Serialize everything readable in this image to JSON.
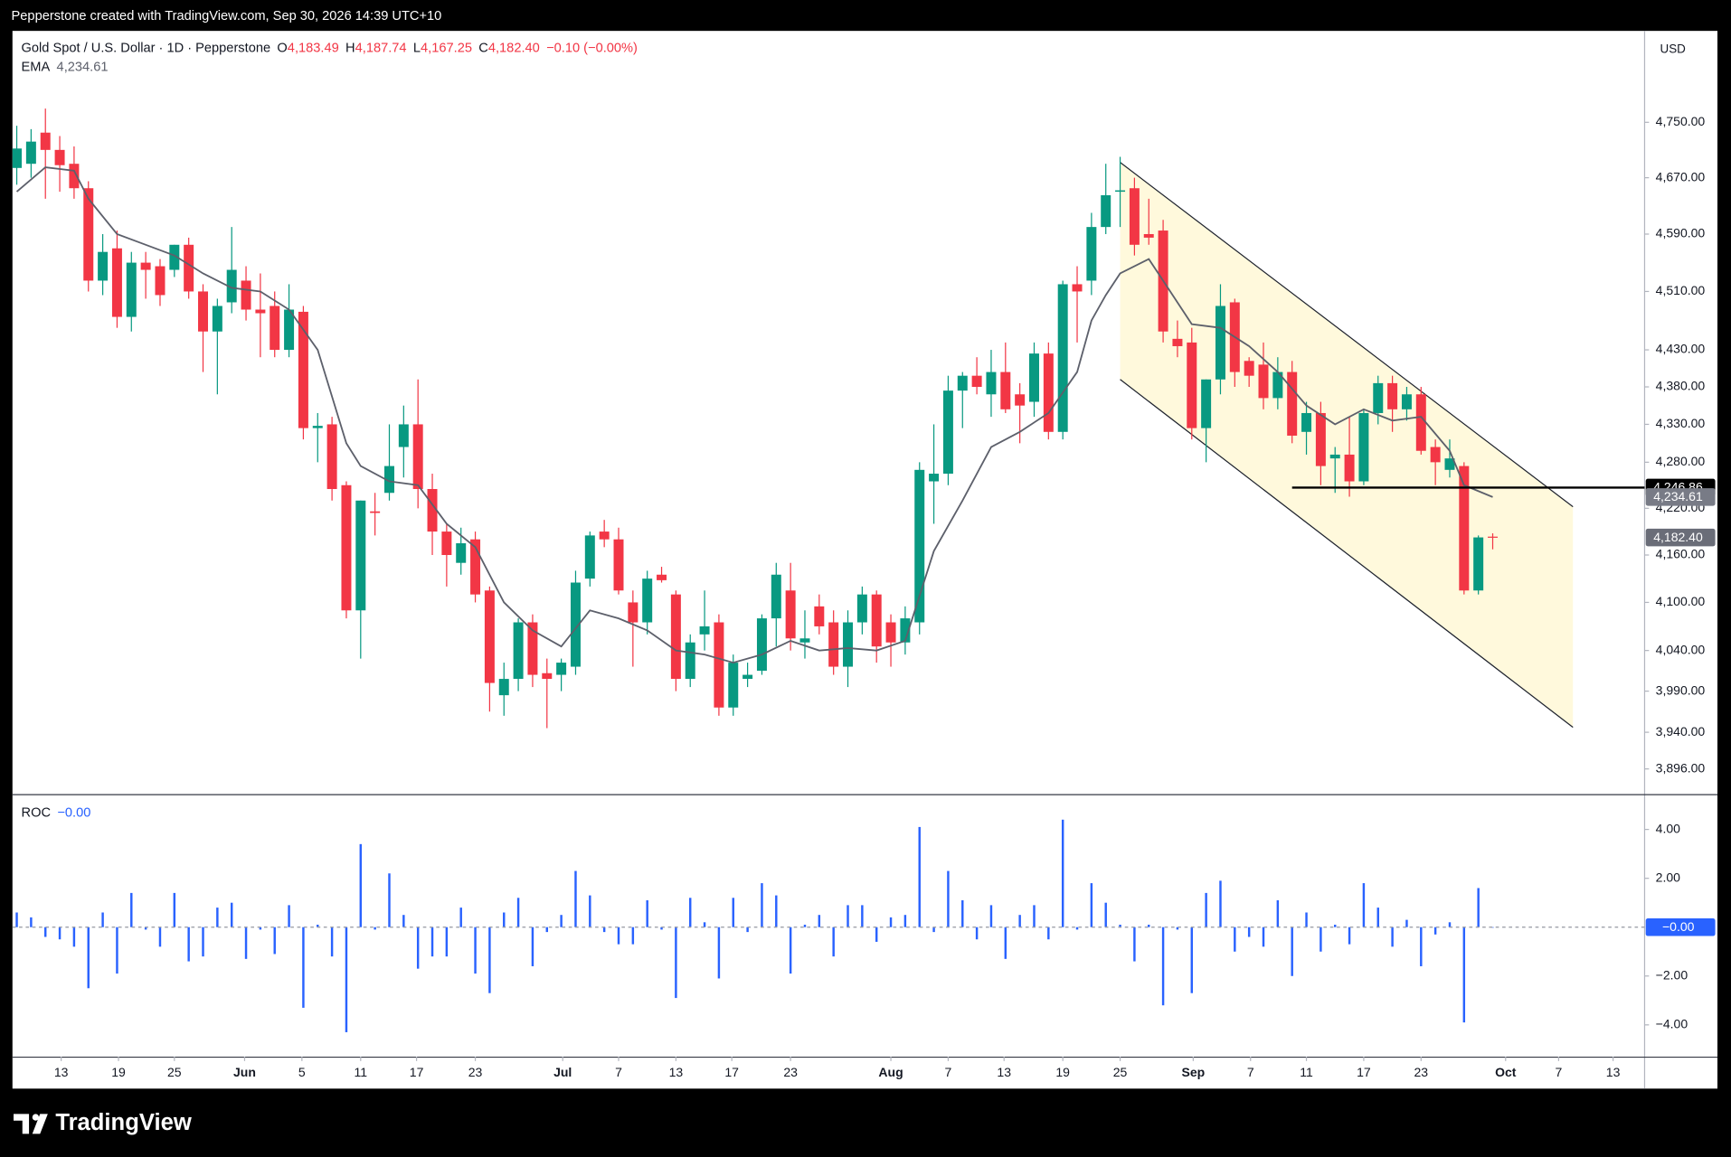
{
  "header": "Pepperstone created with TradingView.com, Sep 30, 2026 14:39 UTC+10",
  "footer_logo": "TradingView",
  "chart_data": [
    {
      "type": "candlestick",
      "title": "Gold Spot / U.S. Dollar · 1D · Pepperstone",
      "legend": [
        {
          "key": "O",
          "label": "4,183.49"
        },
        {
          "key": "H",
          "label": "4,187.74"
        },
        {
          "key": "L",
          "label": "4,167.25"
        },
        {
          "key": "C",
          "label": "4,182.40"
        }
      ],
      "change_label": "−0.10 (−0.00%)",
      "currency": "USD",
      "up_color": "#089981",
      "down_color": "#f23645",
      "log_scale": true,
      "ylim": [
        3866,
        4885
      ],
      "yticks": [
        {
          "value": 4750,
          "label": "4,750.00"
        },
        {
          "value": 4670,
          "label": "4,670.00"
        },
        {
          "value": 4590,
          "label": "4,590.00"
        },
        {
          "value": 4510,
          "label": "4,510.00"
        },
        {
          "value": 4430,
          "label": "4,430.00"
        },
        {
          "value": 4380,
          "label": "4,380.00"
        },
        {
          "value": 4330,
          "label": "4,330.00"
        },
        {
          "value": 4280,
          "label": "4,280.00"
        },
        {
          "value": 4220,
          "label": "4,220.00"
        },
        {
          "value": 4160,
          "label": "4,160.00"
        },
        {
          "value": 4100,
          "label": "4,100.00"
        },
        {
          "value": 4040,
          "label": "4,040.00"
        },
        {
          "value": 3990,
          "label": "3,990.00"
        },
        {
          "value": 3940,
          "label": "3,940.00"
        },
        {
          "value": 3896,
          "label": "3,896.00"
        }
      ],
      "xlim": [
        -0.3,
        113.6
      ],
      "xticks": [
        {
          "value": 3.1,
          "label": "13"
        },
        {
          "value": 7.1,
          "label": "19"
        },
        {
          "value": 11.0,
          "label": "25"
        },
        {
          "value": 15.9,
          "label": "Jun"
        },
        {
          "value": 19.9,
          "label": "5"
        },
        {
          "value": 24.0,
          "label": "11"
        },
        {
          "value": 27.9,
          "label": "17"
        },
        {
          "value": 32.0,
          "label": "23"
        },
        {
          "value": 38.1,
          "label": "Jul"
        },
        {
          "value": 42.0,
          "label": "7"
        },
        {
          "value": 46.0,
          "label": "13"
        },
        {
          "value": 49.9,
          "label": "17"
        },
        {
          "value": 54.0,
          "label": "23"
        },
        {
          "value": 61.0,
          "label": "Aug"
        },
        {
          "value": 65.0,
          "label": "7"
        },
        {
          "value": 68.9,
          "label": "13"
        },
        {
          "value": 73.0,
          "label": "19"
        },
        {
          "value": 77.0,
          "label": "25"
        },
        {
          "value": 82.1,
          "label": "Sep"
        },
        {
          "value": 86.1,
          "label": "7"
        },
        {
          "value": 90.0,
          "label": "11"
        },
        {
          "value": 94.0,
          "label": "17"
        },
        {
          "value": 98.0,
          "label": "23"
        },
        {
          "value": 103.9,
          "label": "Oct"
        },
        {
          "value": 107.6,
          "label": "7"
        },
        {
          "value": 111.4,
          "label": "13"
        }
      ],
      "open": [
        4684,
        4690,
        4735,
        4710,
        4690,
        4655,
        4525,
        4570,
        4475,
        4550,
        4545,
        4540,
        4575,
        4510,
        4455,
        4495,
        4525,
        4485,
        4490,
        4430,
        4482,
        4325,
        4330,
        4250,
        4090,
        4216,
        4240,
        4300,
        4330,
        4245,
        4190,
        4150,
        4180,
        4115,
        3985,
        4005,
        4075,
        4012,
        4010,
        4020,
        4130,
        4190,
        4180,
        4100,
        4075,
        4135,
        4110,
        4005,
        4060,
        4075,
        3970,
        4005,
        4015,
        4080,
        4115,
        4050,
        4095,
        4075,
        4020,
        4075,
        4110,
        4075,
        4050,
        4075,
        4255,
        4265,
        4375,
        4395,
        4370,
        4400,
        4370,
        4360,
        4425,
        4320,
        4520,
        4525,
        4600,
        4650,
        4655,
        4590,
        4595,
        4445,
        4440,
        4325,
        4390,
        4495,
        4415,
        4410,
        4365,
        4400,
        4320,
        4345,
        4285,
        4290,
        4255,
        4345,
        4385,
        4350,
        4370,
        4300,
        4270,
        4275,
        4115,
        4183.49
      ],
      "high": [
        4745,
        4740,
        4770,
        4730,
        4715,
        4665,
        4590,
        4595,
        4565,
        4565,
        4555,
        4575,
        4585,
        4520,
        4500,
        4600,
        4545,
        4535,
        4510,
        4520,
        4490,
        4345,
        4340,
        4255,
        4230,
        4240,
        4330,
        4355,
        4390,
        4265,
        4200,
        4195,
        4190,
        4120,
        4025,
        4080,
        4085,
        4030,
        4030,
        4140,
        4190,
        4205,
        4195,
        4115,
        4140,
        4145,
        4115,
        4060,
        4115,
        4085,
        4035,
        4025,
        4085,
        4150,
        4150,
        4090,
        4110,
        4090,
        4090,
        4120,
        4115,
        4085,
        4095,
        4280,
        4330,
        4395,
        4400,
        4420,
        4430,
        4440,
        4385,
        4440,
        4440,
        4525,
        4545,
        4620,
        4690,
        4700,
        4670,
        4640,
        4610,
        4470,
        4460,
        4390,
        4520,
        4500,
        4420,
        4440,
        4420,
        4415,
        4360,
        4360,
        4300,
        4340,
        4350,
        4395,
        4395,
        4380,
        4380,
        4310,
        4310,
        4280,
        4185,
        4187.74
      ],
      "low": [
        4660,
        4670,
        4640,
        4650,
        4640,
        4510,
        4505,
        4460,
        4455,
        4500,
        4490,
        4530,
        4500,
        4400,
        4370,
        4480,
        4470,
        4420,
        4420,
        4420,
        4310,
        4280,
        4230,
        4080,
        4030,
        4185,
        4230,
        4260,
        4220,
        4160,
        4120,
        4135,
        4100,
        3965,
        3960,
        3990,
        3995,
        3945,
        3990,
        4010,
        4120,
        4170,
        4110,
        4020,
        4060,
        4125,
        3990,
        3995,
        4040,
        3960,
        3960,
        3995,
        4010,
        4045,
        4040,
        4030,
        4060,
        4010,
        3995,
        4060,
        4025,
        4020,
        4035,
        4060,
        4200,
        4250,
        4325,
        4370,
        4340,
        4345,
        4305,
        4340,
        4310,
        4310,
        4440,
        4505,
        4590,
        4600,
        4560,
        4575,
        4440,
        4420,
        4310,
        4280,
        4370,
        4380,
        4380,
        4350,
        4350,
        4305,
        4290,
        4250,
        4240,
        4235,
        4250,
        4330,
        4320,
        4335,
        4290,
        4250,
        4260,
        4110,
        4110,
        4167.25
      ],
      "close": [
        4712,
        4722,
        4710,
        4688,
        4655,
        4525,
        4565,
        4475,
        4550,
        4540,
        4505,
        4575,
        4510,
        4455,
        4490,
        4540,
        4485,
        4480,
        4430,
        4485,
        4325,
        4328,
        4245,
        4090,
        4230,
        4214,
        4275,
        4330,
        4245,
        4190,
        4160,
        4175,
        4110,
        4000,
        4005,
        4075,
        4010,
        4005,
        4025,
        4125,
        4185,
        4180,
        4115,
        4075,
        4130,
        4128,
        4005,
        4050,
        4070,
        3970,
        4025,
        4010,
        4080,
        4135,
        4055,
        4055,
        4070,
        4020,
        4075,
        4110,
        4045,
        4050,
        4080,
        4270,
        4265,
        4375,
        4395,
        4380,
        4400,
        4350,
        4355,
        4425,
        4320,
        4520,
        4510,
        4600,
        4645,
        4652,
        4575,
        4585,
        4455,
        4435,
        4325,
        4390,
        4490,
        4400,
        4395,
        4365,
        4400,
        4315,
        4345,
        4275,
        4290,
        4255,
        4345,
        4385,
        4350,
        4370,
        4295,
        4280,
        4285,
        4115,
        4182.5,
        4182.4
      ],
      "ema": {
        "name": "EMA",
        "label": "4,234.61",
        "color": "#5d606b",
        "x": [
          0,
          2,
          4,
          5,
          7,
          9,
          11,
          13,
          15,
          17,
          19,
          21,
          23,
          24,
          26,
          28,
          30,
          32,
          34,
          36,
          38,
          40,
          42,
          44,
          46,
          48,
          50,
          52,
          54,
          56,
          58,
          60,
          62,
          64,
          66,
          68,
          70,
          72,
          74,
          75,
          76,
          77,
          79,
          80,
          82,
          84,
          86,
          88,
          90,
          92,
          94,
          96,
          98,
          100,
          101,
          103
        ],
        "values": [
          4650,
          4685,
          4680,
          4640,
          4590,
          4575,
          4560,
          4535,
          4515,
          4510,
          4485,
          4430,
          4305,
          4275,
          4255,
          4250,
          4200,
          4170,
          4100,
          4065,
          4045,
          4090,
          4080,
          4065,
          4040,
          4035,
          4025,
          4035,
          4052,
          4040,
          4043,
          4040,
          4052,
          4165,
          4230,
          4300,
          4320,
          4345,
          4400,
          4470,
          4505,
          4535,
          4555,
          4525,
          4465,
          4460,
          4435,
          4400,
          4355,
          4330,
          4350,
          4335,
          4340,
          4295,
          4250,
          4234.61
        ]
      },
      "channel": {
        "fill": "#fff9dc",
        "color": "#1e222d",
        "upper": {
          "x": [
            77,
            108.6
          ],
          "values": [
            4692,
            4222
          ]
        },
        "lower": {
          "x": [
            77,
            108.6
          ],
          "values": [
            4390,
            3946
          ]
        }
      },
      "hline": {
        "start": 89,
        "value": 4246.86,
        "label": "4,246.86",
        "color": "#000000"
      }
    },
    {
      "type": "bar",
      "title": "ROC",
      "value_label": "−0.00",
      "color": "#2962ff",
      "xlim": [
        -0.3,
        113.6
      ],
      "ylim": [
        -5.3,
        5.4
      ],
      "yticks": [
        {
          "value": 4,
          "label": "4.00"
        },
        {
          "value": 2,
          "label": "2.00"
        },
        {
          "value": -2,
          "label": "−2.00"
        },
        {
          "value": -4,
          "label": "−4.00"
        }
      ],
      "values": [
        0.6,
        0.4,
        -0.4,
        -0.5,
        -0.8,
        -2.5,
        0.6,
        -1.9,
        1.4,
        -0.1,
        -0.8,
        1.4,
        -1.4,
        -1.2,
        0.8,
        1.0,
        -1.3,
        -0.1,
        -1.1,
        0.9,
        -3.3,
        0.1,
        -1.2,
        -4.3,
        3.4,
        -0.1,
        2.2,
        0.5,
        -1.7,
        -1.2,
        -1.2,
        0.8,
        -1.9,
        -2.7,
        0.6,
        1.2,
        -1.6,
        -0.2,
        0.5,
        2.3,
        1.3,
        -0.2,
        -0.7,
        -0.7,
        1.1,
        -0.1,
        -2.9,
        1.2,
        0.2,
        -2.1,
        1.2,
        -0.2,
        1.8,
        1.3,
        -1.9,
        0.1,
        0.5,
        -1.2,
        0.9,
        0.9,
        -0.6,
        0.4,
        0.5,
        4.1,
        -0.2,
        2.3,
        1.1,
        -0.5,
        0.9,
        -1.3,
        0.5,
        0.9,
        -0.5,
        4.4,
        -0.1,
        1.8,
        1.0,
        0.1,
        -1.4,
        0.1,
        -3.2,
        -0.1,
        -2.7,
        1.4,
        1.9,
        -1.0,
        -0.4,
        -0.8,
        1.1,
        -2.0,
        0.6,
        -1.0,
        0.1,
        -0.7,
        1.8,
        0.8,
        -0.8,
        0.3,
        -1.6,
        -0.3,
        0.2,
        -3.9,
        1.6,
        -0.0024
      ]
    }
  ]
}
